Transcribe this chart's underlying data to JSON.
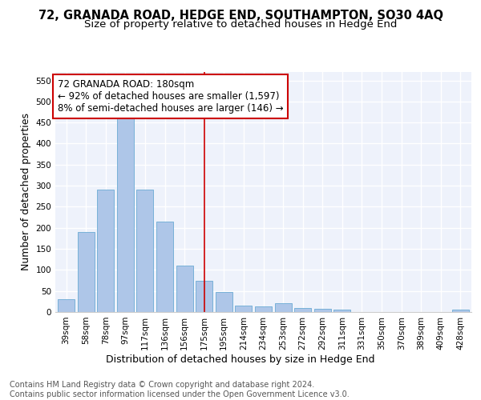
{
  "title": "72, GRANADA ROAD, HEDGE END, SOUTHAMPTON, SO30 4AQ",
  "subtitle": "Size of property relative to detached houses in Hedge End",
  "xlabel": "Distribution of detached houses by size in Hedge End",
  "ylabel": "Number of detached properties",
  "categories": [
    "39sqm",
    "58sqm",
    "78sqm",
    "97sqm",
    "117sqm",
    "136sqm",
    "156sqm",
    "175sqm",
    "195sqm",
    "214sqm",
    "234sqm",
    "253sqm",
    "272sqm",
    "292sqm",
    "311sqm",
    "331sqm",
    "350sqm",
    "370sqm",
    "389sqm",
    "409sqm",
    "428sqm"
  ],
  "values": [
    30,
    190,
    290,
    460,
    290,
    215,
    110,
    75,
    47,
    15,
    13,
    20,
    10,
    8,
    5,
    0,
    0,
    0,
    0,
    0,
    5
  ],
  "bar_color": "#aec6e8",
  "bar_edge_color": "#6aaad4",
  "vline_x_index": 7,
  "vline_color": "#cc0000",
  "annotation_text": "72 GRANADA ROAD: 180sqm\n← 92% of detached houses are smaller (1,597)\n8% of semi-detached houses are larger (146) →",
  "annotation_box_facecolor": "#ffffff",
  "annotation_box_edgecolor": "#cc0000",
  "ylim": [
    0,
    570
  ],
  "yticks": [
    0,
    50,
    100,
    150,
    200,
    250,
    300,
    350,
    400,
    450,
    500,
    550
  ],
  "footer_text": "Contains HM Land Registry data © Crown copyright and database right 2024.\nContains public sector information licensed under the Open Government Licence v3.0.",
  "background_color": "#eef2fb",
  "grid_color": "#ffffff",
  "title_fontsize": 10.5,
  "subtitle_fontsize": 9.5,
  "xlabel_fontsize": 9,
  "ylabel_fontsize": 9,
  "tick_fontsize": 7.5,
  "annotation_fontsize": 8.5,
  "footer_fontsize": 7
}
